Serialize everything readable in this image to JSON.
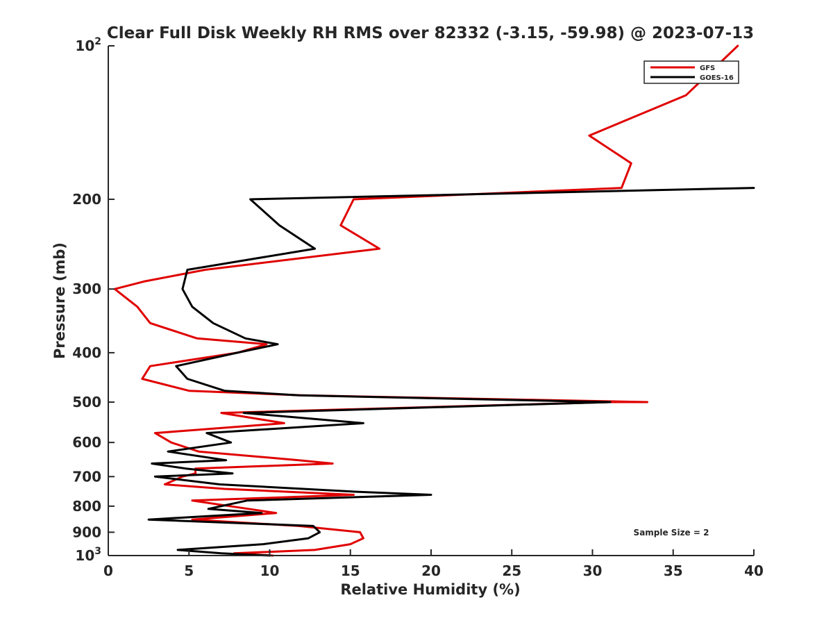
{
  "chart_data": {
    "type": "line",
    "title": "Clear Full Disk Weekly RH RMS over 82332 (-3.15, -59.98) @ 2023-07-13",
    "xlabel": "Relative Humidity (%)",
    "ylabel": "Pressure (mb)",
    "xlim": [
      0,
      40
    ],
    "ylim": [
      100,
      1000
    ],
    "y_scale": "log",
    "y_reversed": true,
    "x_ticks": [
      "0",
      "5",
      "10",
      "15",
      "20",
      "25",
      "30",
      "35",
      "40"
    ],
    "y_ticks": [
      {
        "value": 100,
        "label": "10",
        "exp": "2"
      },
      {
        "value": 200,
        "label": "200"
      },
      {
        "value": 300,
        "label": "300"
      },
      {
        "value": 400,
        "label": "400"
      },
      {
        "value": 500,
        "label": "500"
      },
      {
        "value": 600,
        "label": "600"
      },
      {
        "value": 700,
        "label": "700"
      },
      {
        "value": 800,
        "label": "800"
      },
      {
        "value": 900,
        "label": "900"
      },
      {
        "value": 1000,
        "label": "10",
        "exp": "3"
      }
    ],
    "legend_position": "top-right",
    "grid": false,
    "annotation": "Sample Size = 2",
    "series": [
      {
        "name": "GFS",
        "color": "#e00000",
        "points": [
          [
            39.0,
            100
          ],
          [
            35.8,
            125
          ],
          [
            29.8,
            150
          ],
          [
            32.4,
            170
          ],
          [
            31.8,
            190
          ],
          [
            15.2,
            200
          ],
          [
            14.4,
            225
          ],
          [
            16.8,
            250
          ],
          [
            6.0,
            275
          ],
          [
            2.2,
            290
          ],
          [
            0.4,
            300
          ],
          [
            1.8,
            325
          ],
          [
            2.6,
            350
          ],
          [
            5.5,
            375
          ],
          [
            9.8,
            385
          ],
          [
            8.0,
            400
          ],
          [
            2.6,
            425
          ],
          [
            2.1,
            450
          ],
          [
            5.0,
            475
          ],
          [
            12.0,
            485
          ],
          [
            33.4,
            500
          ],
          [
            31.1,
            500
          ],
          [
            7.0,
            525
          ],
          [
            10.9,
            550
          ],
          [
            2.9,
            575
          ],
          [
            3.9,
            600
          ],
          [
            5.6,
            625
          ],
          [
            11.8,
            650
          ],
          [
            13.9,
            660
          ],
          [
            5.4,
            675
          ],
          [
            5.4,
            690
          ],
          [
            4.6,
            700
          ],
          [
            3.5,
            725
          ],
          [
            7.2,
            740
          ],
          [
            15.2,
            760
          ],
          [
            5.2,
            780
          ],
          [
            10.4,
            825
          ],
          [
            5.2,
            850
          ],
          [
            11.8,
            875
          ],
          [
            15.6,
            900
          ],
          [
            15.8,
            925
          ],
          [
            15.0,
            950
          ],
          [
            12.8,
            975
          ],
          [
            7.8,
            990
          ],
          [
            10.2,
            1000
          ]
        ]
      },
      {
        "name": "GOES-16",
        "color": "#000000",
        "points": [
          [
            40.0,
            190
          ],
          [
            8.8,
            200
          ],
          [
            10.6,
            225
          ],
          [
            12.8,
            250
          ],
          [
            4.9,
            275
          ],
          [
            4.6,
            300
          ],
          [
            5.2,
            325
          ],
          [
            6.5,
            350
          ],
          [
            8.5,
            375
          ],
          [
            10.5,
            385
          ],
          [
            8.0,
            400
          ],
          [
            4.2,
            425
          ],
          [
            4.9,
            450
          ],
          [
            7.2,
            475
          ],
          [
            11.8,
            485
          ],
          [
            31.1,
            500
          ],
          [
            8.4,
            525
          ],
          [
            15.8,
            550
          ],
          [
            6.1,
            575
          ],
          [
            7.6,
            600
          ],
          [
            3.7,
            625
          ],
          [
            7.3,
            650
          ],
          [
            2.7,
            660
          ],
          [
            4.8,
            675
          ],
          [
            7.7,
            690
          ],
          [
            2.9,
            700
          ],
          [
            6.9,
            725
          ],
          [
            15.5,
            750
          ],
          [
            20.0,
            760
          ],
          [
            8.6,
            780
          ],
          [
            6.2,
            810
          ],
          [
            9.5,
            825
          ],
          [
            2.5,
            850
          ],
          [
            12.7,
            875
          ],
          [
            13.1,
            900
          ],
          [
            12.4,
            925
          ],
          [
            9.6,
            950
          ],
          [
            4.3,
            975
          ],
          [
            7.0,
            990
          ],
          [
            10.0,
            1000
          ]
        ]
      }
    ]
  }
}
